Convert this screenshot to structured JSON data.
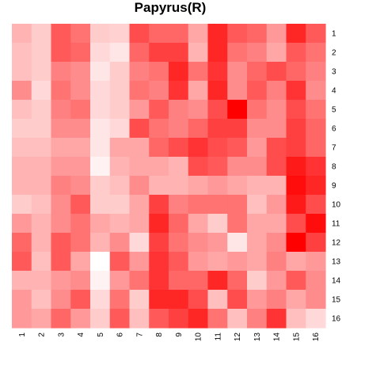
{
  "chart_data": {
    "type": "heatmap",
    "title": "Papyrus(R)",
    "xlabel": "",
    "ylabel": "",
    "x_tick_labels": [
      "1",
      "2",
      "3",
      "4",
      "5",
      "6",
      "7",
      "8",
      "9",
      "10",
      "11",
      "12",
      "13",
      "14",
      "15",
      "16"
    ],
    "y_tick_labels": [
      "1",
      "2",
      "3",
      "4",
      "5",
      "6",
      "7",
      "8",
      "9",
      "10",
      "11",
      "12",
      "13",
      "14",
      "15",
      "16"
    ],
    "color_low": "#ffffff",
    "color_high": "#ff0000",
    "value_range": [
      0,
      1
    ],
    "legend": "none",
    "values": [
      [
        0.3,
        0.2,
        0.65,
        0.55,
        0.2,
        0.18,
        0.7,
        0.6,
        0.6,
        0.35,
        0.85,
        0.65,
        0.6,
        0.4,
        0.85,
        0.65
      ],
      [
        0.25,
        0.2,
        0.65,
        0.6,
        0.15,
        0.1,
        0.6,
        0.75,
        0.75,
        0.3,
        0.85,
        0.55,
        0.5,
        0.35,
        0.65,
        0.55
      ],
      [
        0.25,
        0.2,
        0.5,
        0.45,
        0.1,
        0.2,
        0.5,
        0.55,
        0.85,
        0.55,
        0.8,
        0.45,
        0.6,
        0.7,
        0.6,
        0.5
      ],
      [
        0.45,
        0.15,
        0.55,
        0.45,
        0.15,
        0.2,
        0.55,
        0.5,
        0.8,
        0.35,
        0.85,
        0.45,
        0.65,
        0.5,
        0.8,
        0.45
      ],
      [
        0.25,
        0.2,
        0.5,
        0.55,
        0.15,
        0.2,
        0.4,
        0.65,
        0.5,
        0.45,
        0.7,
        1.0,
        0.55,
        0.45,
        0.7,
        0.55
      ],
      [
        0.2,
        0.2,
        0.45,
        0.45,
        0.1,
        0.15,
        0.7,
        0.55,
        0.5,
        0.6,
        0.75,
        0.75,
        0.45,
        0.45,
        0.75,
        0.6
      ],
      [
        0.25,
        0.25,
        0.35,
        0.35,
        0.1,
        0.35,
        0.35,
        0.6,
        0.7,
        0.8,
        0.7,
        0.65,
        0.4,
        0.7,
        0.75,
        0.6
      ],
      [
        0.3,
        0.3,
        0.4,
        0.4,
        0.05,
        0.3,
        0.35,
        0.35,
        0.3,
        0.7,
        0.65,
        0.45,
        0.45,
        0.7,
        0.9,
        0.8
      ],
      [
        0.3,
        0.3,
        0.5,
        0.45,
        0.2,
        0.25,
        0.45,
        0.3,
        0.3,
        0.35,
        0.4,
        0.35,
        0.3,
        0.3,
        0.95,
        0.85
      ],
      [
        0.2,
        0.25,
        0.45,
        0.65,
        0.2,
        0.2,
        0.35,
        0.75,
        0.5,
        0.55,
        0.55,
        0.55,
        0.25,
        0.4,
        0.9,
        0.7
      ],
      [
        0.4,
        0.3,
        0.45,
        0.55,
        0.35,
        0.3,
        0.35,
        0.85,
        0.6,
        0.35,
        0.2,
        0.55,
        0.35,
        0.35,
        0.7,
        0.95
      ],
      [
        0.6,
        0.3,
        0.65,
        0.55,
        0.3,
        0.45,
        0.15,
        0.75,
        0.55,
        0.45,
        0.4,
        0.1,
        0.35,
        0.45,
        1.0,
        0.75
      ],
      [
        0.65,
        0.25,
        0.65,
        0.35,
        0.0,
        0.65,
        0.4,
        0.8,
        0.65,
        0.4,
        0.35,
        0.4,
        0.35,
        0.5,
        0.35,
        0.4
      ],
      [
        0.3,
        0.3,
        0.4,
        0.45,
        0.05,
        0.4,
        0.55,
        0.8,
        0.6,
        0.6,
        0.85,
        0.6,
        0.2,
        0.4,
        0.65,
        0.45
      ],
      [
        0.4,
        0.25,
        0.45,
        0.65,
        0.15,
        0.55,
        0.2,
        0.85,
        0.85,
        0.7,
        0.25,
        0.7,
        0.4,
        0.5,
        0.35,
        0.45
      ],
      [
        0.4,
        0.35,
        0.6,
        0.4,
        0.2,
        0.65,
        0.25,
        0.65,
        0.75,
        0.85,
        0.55,
        0.25,
        0.5,
        0.8,
        0.25,
        0.15
      ]
    ]
  }
}
